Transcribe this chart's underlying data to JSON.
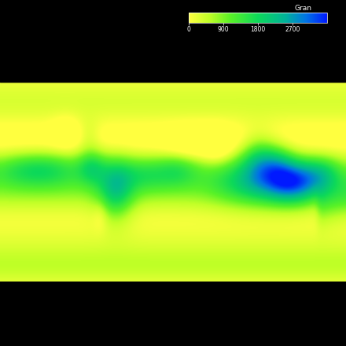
{
  "colorbar_label": "Gran",
  "colorbar_ticks": [
    0,
    900,
    1800,
    2700
  ],
  "vmin": 0,
  "vmax": 3600,
  "background_color": "#000000",
  "map_background": "#808080",
  "figsize": [
    4.4,
    4.4
  ],
  "dpi": 100,
  "colormap_stops": [
    [
      0.0,
      [
        1.0,
        1.0,
        0.25
      ]
    ],
    [
      0.15,
      [
        0.75,
        1.0,
        0.15
      ]
    ],
    [
      0.3,
      [
        0.35,
        0.95,
        0.15
      ]
    ],
    [
      0.5,
      [
        0.05,
        0.85,
        0.35
      ]
    ],
    [
      0.7,
      [
        0.0,
        0.7,
        0.6
      ]
    ],
    [
      0.85,
      [
        0.0,
        0.45,
        0.9
      ]
    ],
    [
      1.0,
      [
        0.0,
        0.1,
        1.0
      ]
    ]
  ]
}
